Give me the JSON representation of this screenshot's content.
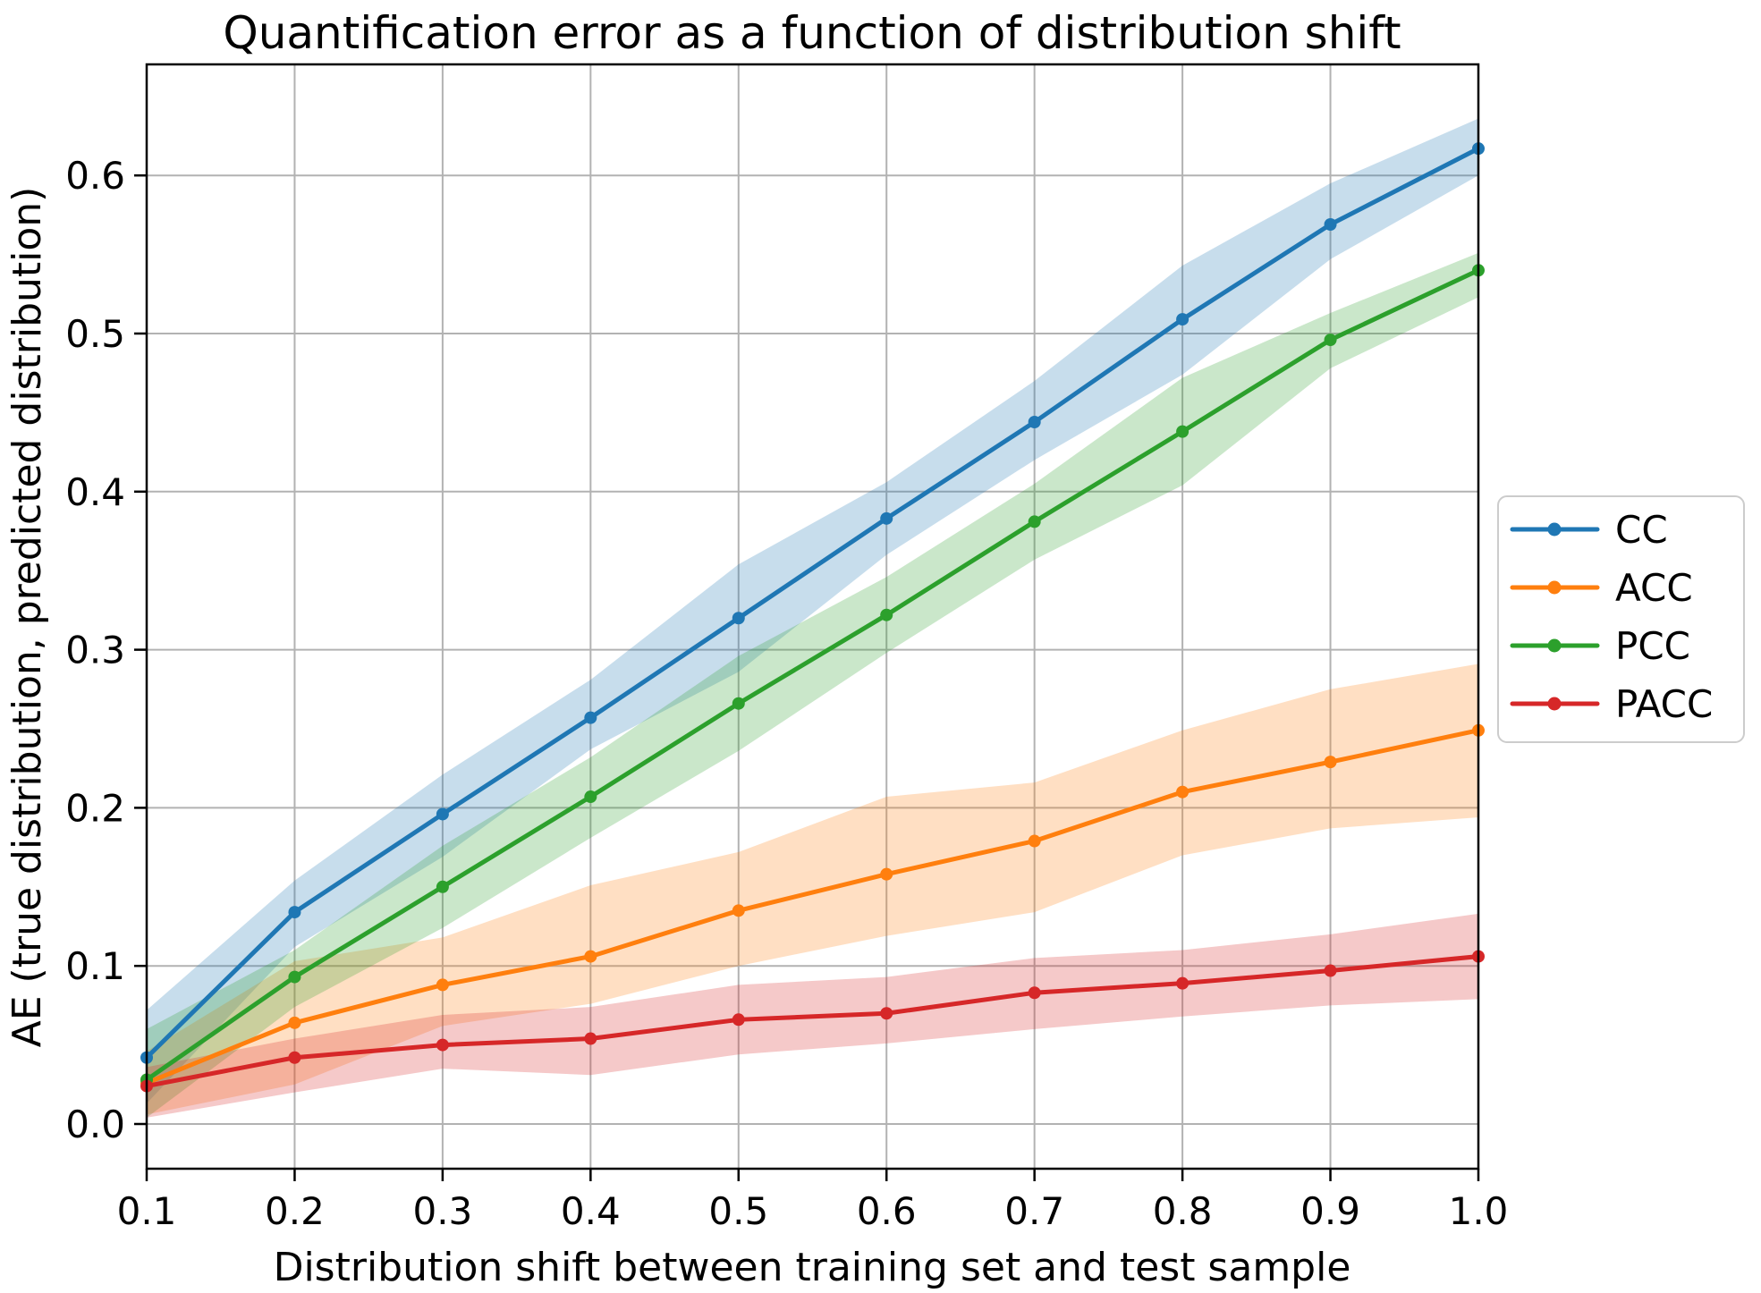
{
  "chart_data": {
    "type": "line",
    "title": "Quantification error as a function of distribution shift",
    "xlabel": "Distribution shift between training set and test sample",
    "ylabel": "AE (true distribution, predicted distribution)",
    "x": [
      0.1,
      0.2,
      0.3,
      0.4,
      0.5,
      0.6,
      0.7,
      0.8,
      0.9,
      1.0
    ],
    "x_tick_labels": [
      "0.1",
      "0.2",
      "0.3",
      "0.4",
      "0.5",
      "0.6",
      "0.7",
      "0.8",
      "0.9",
      "1.0"
    ],
    "y_ticks": [
      0.0,
      0.1,
      0.2,
      0.3,
      0.4,
      0.5,
      0.6
    ],
    "y_tick_labels": [
      "0.0",
      "0.1",
      "0.2",
      "0.3",
      "0.4",
      "0.5",
      "0.6"
    ],
    "xlim": [
      0.1,
      1.0
    ],
    "ylim": [
      -0.028,
      0.67
    ],
    "grid": true,
    "grid_color": "#b2b2b2",
    "legend_position": "outside-right",
    "band_opacity": 0.25,
    "series": [
      {
        "name": "CC",
        "color": "#1f77b4",
        "values": [
          0.042,
          0.134,
          0.196,
          0.257,
          0.32,
          0.383,
          0.444,
          0.509,
          0.569,
          0.617
        ],
        "band_upper": [
          0.072,
          0.154,
          0.221,
          0.281,
          0.354,
          0.406,
          0.47,
          0.543,
          0.595,
          0.636
        ],
        "band_lower": [
          0.013,
          0.112,
          0.169,
          0.237,
          0.286,
          0.36,
          0.42,
          0.474,
          0.547,
          0.6
        ]
      },
      {
        "name": "ACC",
        "color": "#ff7f0e",
        "values": [
          0.026,
          0.064,
          0.088,
          0.106,
          0.135,
          0.158,
          0.179,
          0.21,
          0.229,
          0.249
        ],
        "band_upper": [
          0.046,
          0.103,
          0.118,
          0.151,
          0.172,
          0.207,
          0.216,
          0.249,
          0.275,
          0.291
        ],
        "band_lower": [
          0.006,
          0.025,
          0.062,
          0.076,
          0.1,
          0.119,
          0.134,
          0.17,
          0.187,
          0.194
        ]
      },
      {
        "name": "PCC",
        "color": "#2ca02c",
        "values": [
          0.028,
          0.093,
          0.15,
          0.207,
          0.266,
          0.322,
          0.381,
          0.438,
          0.496,
          0.54
        ],
        "band_upper": [
          0.06,
          0.11,
          0.176,
          0.232,
          0.296,
          0.346,
          0.405,
          0.472,
          0.513,
          0.551
        ],
        "band_lower": [
          0.004,
          0.074,
          0.124,
          0.181,
          0.236,
          0.298,
          0.357,
          0.404,
          0.478,
          0.523
        ]
      },
      {
        "name": "PACC",
        "color": "#d62728",
        "values": [
          0.024,
          0.042,
          0.05,
          0.054,
          0.066,
          0.07,
          0.083,
          0.089,
          0.097,
          0.106
        ],
        "band_upper": [
          0.036,
          0.054,
          0.069,
          0.074,
          0.088,
          0.093,
          0.105,
          0.11,
          0.12,
          0.133
        ],
        "band_lower": [
          0.004,
          0.02,
          0.035,
          0.031,
          0.044,
          0.051,
          0.06,
          0.068,
          0.075,
          0.079
        ]
      }
    ]
  }
}
